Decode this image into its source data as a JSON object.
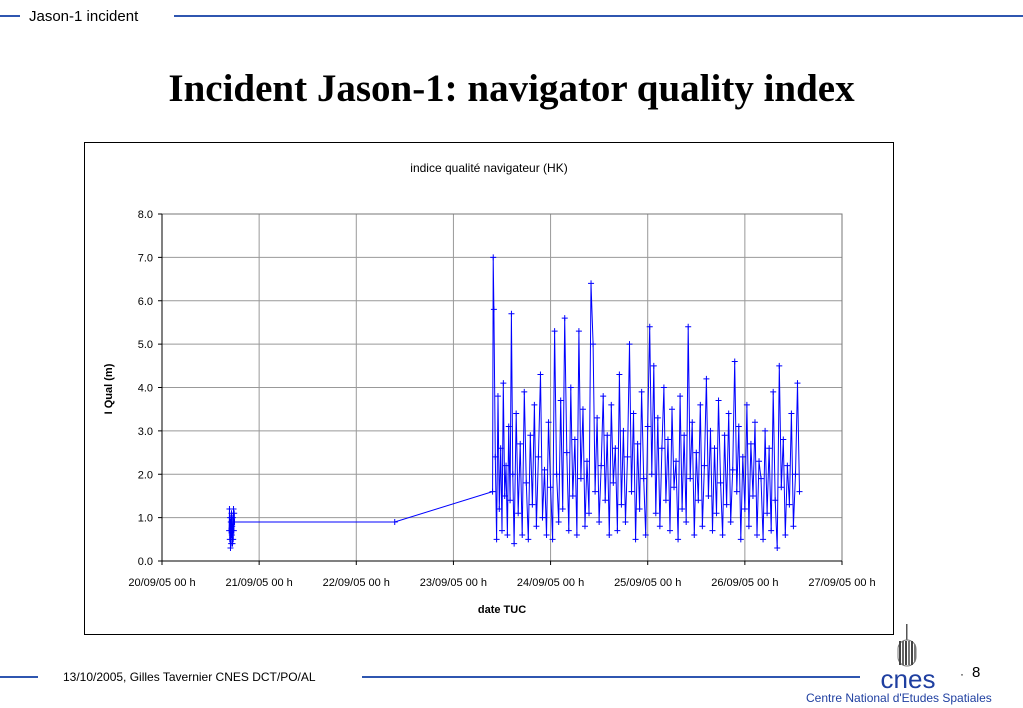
{
  "header": {
    "section": "Jason-1 incident"
  },
  "slide": {
    "title": "Incident Jason-1: navigator quality index"
  },
  "footer": {
    "author": "13/10/2005, Gilles Tavernier CNES DCT/PO/AL",
    "page_number": "8",
    "organization": "Centre National d'Etudes Spatiales",
    "logo_text": "cnes"
  },
  "colors": {
    "accent": "#2f56b0",
    "series": "#0000ff",
    "organization_text": "#1f3fa0"
  },
  "chart_data": {
    "type": "line",
    "title": "indice qualité navigateur (HK)",
    "xlabel": "date TUC",
    "ylabel": "I Qual (m)",
    "xlim": [
      "2005-09-20T00:00",
      "2005-09-27T00:00"
    ],
    "ylim": [
      0,
      8
    ],
    "x_ticks": [
      "20/09/05 00 h",
      "21/09/05 00 h",
      "22/09/05 00 h",
      "23/09/05 00 h",
      "24/09/05 00 h",
      "25/09/05 00 h",
      "26/09/05 00 h",
      "27/09/05 00 h"
    ],
    "y_ticks": [
      "0.0",
      "1.0",
      "2.0",
      "3.0",
      "4.0",
      "5.0",
      "6.0",
      "7.0",
      "8.0"
    ],
    "grid": true,
    "legend": "none",
    "series": [
      {
        "marker": "plus",
        "points": [
          [
            "2005-09-20T16:35",
            0.7
          ],
          [
            "2005-09-20T16:40",
            1.2
          ],
          [
            "2005-09-20T16:45",
            0.5
          ],
          [
            "2005-09-20T16:50",
            1.0
          ],
          [
            "2005-09-20T16:55",
            0.3
          ],
          [
            "2005-09-20T17:00",
            0.9
          ],
          [
            "2005-09-20T17:05",
            0.4
          ],
          [
            "2005-09-20T17:10",
            1.1
          ],
          [
            "2005-09-20T17:15",
            0.6
          ],
          [
            "2005-09-20T17:20",
            0.8
          ],
          [
            "2005-09-20T17:25",
            0.4
          ],
          [
            "2005-09-20T17:30",
            1.0
          ],
          [
            "2005-09-20T17:35",
            0.5
          ],
          [
            "2005-09-20T17:40",
            1.2
          ],
          [
            "2005-09-20T17:45",
            0.7
          ],
          [
            "2005-09-20T17:50",
            1.1
          ],
          [
            "2005-09-20T17:55",
            0.9
          ],
          [
            "2005-09-22T09:30",
            0.9
          ],
          [
            "2005-09-23T09:40",
            1.6
          ],
          [
            "2005-09-23T09:50",
            7.0
          ],
          [
            "2005-09-23T10:00",
            5.8
          ],
          [
            "2005-09-23T10:20",
            2.4
          ],
          [
            "2005-09-23T10:40",
            0.5
          ],
          [
            "2005-09-23T11:00",
            3.8
          ],
          [
            "2005-09-23T11:20",
            1.2
          ],
          [
            "2005-09-23T11:40",
            2.6
          ],
          [
            "2005-09-23T12:00",
            0.7
          ],
          [
            "2005-09-23T12:20",
            4.1
          ],
          [
            "2005-09-23T12:40",
            1.5
          ],
          [
            "2005-09-23T13:00",
            2.2
          ],
          [
            "2005-09-23T13:20",
            0.6
          ],
          [
            "2005-09-23T13:40",
            3.1
          ],
          [
            "2005-09-23T14:00",
            1.4
          ],
          [
            "2005-09-23T14:20",
            5.7
          ],
          [
            "2005-09-23T14:40",
            2.0
          ],
          [
            "2005-09-23T15:00",
            0.4
          ],
          [
            "2005-09-23T15:30",
            3.4
          ],
          [
            "2005-09-23T16:00",
            1.1
          ],
          [
            "2005-09-23T16:30",
            2.7
          ],
          [
            "2005-09-23T17:00",
            0.6
          ],
          [
            "2005-09-23T17:30",
            3.9
          ],
          [
            "2005-09-23T18:00",
            1.8
          ],
          [
            "2005-09-23T18:30",
            0.5
          ],
          [
            "2005-09-23T19:00",
            2.9
          ],
          [
            "2005-09-23T19:30",
            1.3
          ],
          [
            "2005-09-23T20:00",
            3.6
          ],
          [
            "2005-09-23T20:30",
            0.8
          ],
          [
            "2005-09-23T21:00",
            2.4
          ],
          [
            "2005-09-23T21:30",
            4.3
          ],
          [
            "2005-09-23T22:00",
            1.0
          ],
          [
            "2005-09-23T22:30",
            2.1
          ],
          [
            "2005-09-23T23:00",
            0.6
          ],
          [
            "2005-09-23T23:30",
            3.2
          ],
          [
            "2005-09-24T00:00",
            1.7
          ],
          [
            "2005-09-24T00:30",
            0.5
          ],
          [
            "2005-09-24T01:00",
            5.3
          ],
          [
            "2005-09-24T01:30",
            2.0
          ],
          [
            "2005-09-24T02:00",
            0.9
          ],
          [
            "2005-09-24T02:30",
            3.7
          ],
          [
            "2005-09-24T03:00",
            1.2
          ],
          [
            "2005-09-24T03:30",
            5.6
          ],
          [
            "2005-09-24T04:00",
            2.5
          ],
          [
            "2005-09-24T04:30",
            0.7
          ],
          [
            "2005-09-24T05:00",
            4.0
          ],
          [
            "2005-09-24T05:30",
            1.5
          ],
          [
            "2005-09-24T06:00",
            2.8
          ],
          [
            "2005-09-24T06:30",
            0.6
          ],
          [
            "2005-09-24T07:00",
            5.3
          ],
          [
            "2005-09-24T07:30",
            1.9
          ],
          [
            "2005-09-24T08:00",
            3.5
          ],
          [
            "2005-09-24T08:30",
            0.8
          ],
          [
            "2005-09-24T09:00",
            2.3
          ],
          [
            "2005-09-24T09:30",
            1.1
          ],
          [
            "2005-09-24T10:00",
            6.4
          ],
          [
            "2005-09-24T10:30",
            5.0
          ],
          [
            "2005-09-24T11:00",
            1.6
          ],
          [
            "2005-09-24T11:30",
            3.3
          ],
          [
            "2005-09-24T12:00",
            0.9
          ],
          [
            "2005-09-24T12:30",
            2.2
          ],
          [
            "2005-09-24T13:00",
            3.8
          ],
          [
            "2005-09-24T13:30",
            1.4
          ],
          [
            "2005-09-24T14:00",
            2.9
          ],
          [
            "2005-09-24T14:30",
            0.6
          ],
          [
            "2005-09-24T15:00",
            3.6
          ],
          [
            "2005-09-24T15:30",
            1.8
          ],
          [
            "2005-09-24T16:00",
            2.6
          ],
          [
            "2005-09-24T16:30",
            0.7
          ],
          [
            "2005-09-24T17:00",
            4.3
          ],
          [
            "2005-09-24T17:30",
            1.3
          ],
          [
            "2005-09-24T18:00",
            3.0
          ],
          [
            "2005-09-24T18:30",
            0.9
          ],
          [
            "2005-09-24T19:00",
            2.4
          ],
          [
            "2005-09-24T19:30",
            5.0
          ],
          [
            "2005-09-24T20:00",
            1.6
          ],
          [
            "2005-09-24T20:30",
            3.4
          ],
          [
            "2005-09-24T21:00",
            0.5
          ],
          [
            "2005-09-24T21:30",
            2.7
          ],
          [
            "2005-09-24T22:00",
            1.2
          ],
          [
            "2005-09-24T22:30",
            3.9
          ],
          [
            "2005-09-24T23:00",
            1.9
          ],
          [
            "2005-09-24T23:30",
            0.6
          ],
          [
            "2005-09-25T00:00",
            3.1
          ],
          [
            "2005-09-25T00:30",
            5.4
          ],
          [
            "2005-09-25T01:00",
            2.0
          ],
          [
            "2005-09-25T01:30",
            4.5
          ],
          [
            "2005-09-25T02:00",
            1.1
          ],
          [
            "2005-09-25T02:30",
            3.3
          ],
          [
            "2005-09-25T03:00",
            0.8
          ],
          [
            "2005-09-25T03:30",
            2.6
          ],
          [
            "2005-09-25T04:00",
            4.0
          ],
          [
            "2005-09-25T04:30",
            1.4
          ],
          [
            "2005-09-25T05:00",
            2.8
          ],
          [
            "2005-09-25T05:30",
            0.7
          ],
          [
            "2005-09-25T06:00",
            3.5
          ],
          [
            "2005-09-25T06:30",
            1.7
          ],
          [
            "2005-09-25T07:00",
            2.3
          ],
          [
            "2005-09-25T07:30",
            0.5
          ],
          [
            "2005-09-25T08:00",
            3.8
          ],
          [
            "2005-09-25T08:30",
            1.2
          ],
          [
            "2005-09-25T09:00",
            2.9
          ],
          [
            "2005-09-25T09:30",
            0.9
          ],
          [
            "2005-09-25T10:00",
            5.4
          ],
          [
            "2005-09-25T10:30",
            1.9
          ],
          [
            "2005-09-25T11:00",
            3.2
          ],
          [
            "2005-09-25T11:30",
            0.6
          ],
          [
            "2005-09-25T12:00",
            2.5
          ],
          [
            "2005-09-25T12:30",
            1.4
          ],
          [
            "2005-09-25T13:00",
            3.6
          ],
          [
            "2005-09-25T13:30",
            0.8
          ],
          [
            "2005-09-25T14:00",
            2.2
          ],
          [
            "2005-09-25T14:30",
            4.2
          ],
          [
            "2005-09-25T15:00",
            1.5
          ],
          [
            "2005-09-25T15:30",
            3.0
          ],
          [
            "2005-09-25T16:00",
            0.7
          ],
          [
            "2005-09-25T16:30",
            2.6
          ],
          [
            "2005-09-25T17:00",
            1.1
          ],
          [
            "2005-09-25T17:30",
            3.7
          ],
          [
            "2005-09-25T18:00",
            1.8
          ],
          [
            "2005-09-25T18:30",
            0.6
          ],
          [
            "2005-09-25T19:00",
            2.9
          ],
          [
            "2005-09-25T19:30",
            1.3
          ],
          [
            "2005-09-25T20:00",
            3.4
          ],
          [
            "2005-09-25T20:30",
            0.9
          ],
          [
            "2005-09-25T21:00",
            2.1
          ],
          [
            "2005-09-25T21:30",
            4.6
          ],
          [
            "2005-09-25T22:00",
            1.6
          ],
          [
            "2005-09-25T22:30",
            3.1
          ],
          [
            "2005-09-25T23:00",
            0.5
          ],
          [
            "2005-09-25T23:30",
            2.4
          ],
          [
            "2005-09-26T00:00",
            1.2
          ],
          [
            "2005-09-26T00:30",
            3.6
          ],
          [
            "2005-09-26T01:00",
            0.8
          ],
          [
            "2005-09-26T01:30",
            2.7
          ],
          [
            "2005-09-26T02:00",
            1.5
          ],
          [
            "2005-09-26T02:30",
            3.2
          ],
          [
            "2005-09-26T03:00",
            0.6
          ],
          [
            "2005-09-26T03:30",
            2.3
          ],
          [
            "2005-09-26T04:00",
            1.9
          ],
          [
            "2005-09-26T04:30",
            0.5
          ],
          [
            "2005-09-26T05:00",
            3.0
          ],
          [
            "2005-09-26T05:30",
            1.1
          ],
          [
            "2005-09-26T06:00",
            2.6
          ],
          [
            "2005-09-26T06:30",
            0.7
          ],
          [
            "2005-09-26T07:00",
            3.9
          ],
          [
            "2005-09-26T07:30",
            1.4
          ],
          [
            "2005-09-26T08:00",
            0.3
          ],
          [
            "2005-09-26T08:30",
            4.5
          ],
          [
            "2005-09-26T09:00",
            1.7
          ],
          [
            "2005-09-26T09:30",
            2.8
          ],
          [
            "2005-09-26T10:00",
            0.6
          ],
          [
            "2005-09-26T10:30",
            2.2
          ],
          [
            "2005-09-26T11:00",
            1.3
          ],
          [
            "2005-09-26T11:30",
            3.4
          ],
          [
            "2005-09-26T12:00",
            0.8
          ],
          [
            "2005-09-26T12:30",
            2.0
          ],
          [
            "2005-09-26T13:00",
            4.1
          ],
          [
            "2005-09-26T13:30",
            1.6
          ]
        ]
      }
    ]
  }
}
